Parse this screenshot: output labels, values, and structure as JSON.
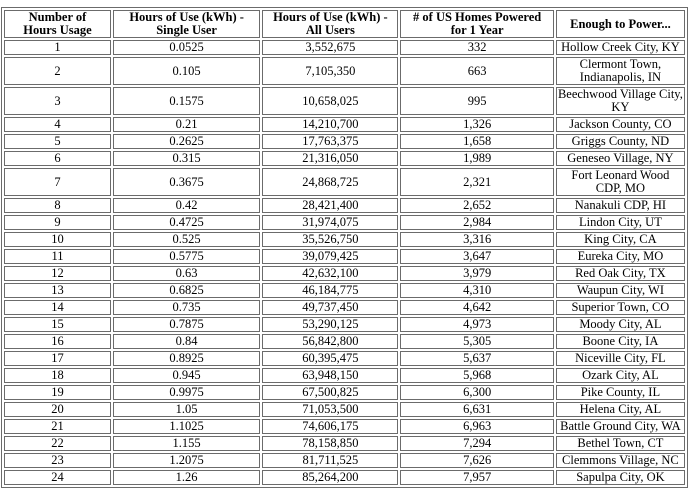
{
  "style": {
    "border_color": "#6b6b6b",
    "text_color": "#000000",
    "background_color": "#ffffff"
  },
  "chart_data": {
    "type": "table",
    "columns": [
      "Number of\nHours Usage",
      "Hours of Use (kWh) -\nSingle User",
      "Hours of Use (kWh) -\nAll Users",
      "# of US Homes Powered\nfor 1 Year",
      "Enough to Power..."
    ],
    "rows": [
      [
        "1",
        "0.0525",
        "3,552,675",
        "332",
        "Hollow Creek City, KY"
      ],
      [
        "2",
        "0.105",
        "7,105,350",
        "663",
        "Clermont Town, Indianapolis, IN"
      ],
      [
        "3",
        "0.1575",
        "10,658,025",
        "995",
        "Beechwood Village City, KY"
      ],
      [
        "4",
        "0.21",
        "14,210,700",
        "1,326",
        "Jackson County, CO"
      ],
      [
        "5",
        "0.2625",
        "17,763,375",
        "1,658",
        "Griggs County, ND"
      ],
      [
        "6",
        "0.315",
        "21,316,050",
        "1,989",
        "Geneseo Village, NY"
      ],
      [
        "7",
        "0.3675",
        "24,868,725",
        "2,321",
        "Fort Leonard Wood CDP, MO"
      ],
      [
        "8",
        "0.42",
        "28,421,400",
        "2,652",
        "Nanakuli CDP, HI"
      ],
      [
        "9",
        "0.4725",
        "31,974,075",
        "2,984",
        "Lindon City, UT"
      ],
      [
        "10",
        "0.525",
        "35,526,750",
        "3,316",
        "King City, CA"
      ],
      [
        "11",
        "0.5775",
        "39,079,425",
        "3,647",
        "Eureka City, MO"
      ],
      [
        "12",
        "0.63",
        "42,632,100",
        "3,979",
        "Red Oak City, TX"
      ],
      [
        "13",
        "0.6825",
        "46,184,775",
        "4,310",
        "Waupun City, WI"
      ],
      [
        "14",
        "0.735",
        "49,737,450",
        "4,642",
        "Superior Town, CO"
      ],
      [
        "15",
        "0.7875",
        "53,290,125",
        "4,973",
        "Moody City, AL"
      ],
      [
        "16",
        "0.84",
        "56,842,800",
        "5,305",
        "Boone City, IA"
      ],
      [
        "17",
        "0.8925",
        "60,395,475",
        "5,637",
        "Niceville City, FL"
      ],
      [
        "18",
        "0.945",
        "63,948,150",
        "5,968",
        "Ozark City, AL"
      ],
      [
        "19",
        "0.9975",
        "67,500,825",
        "6,300",
        "Pike County, IL"
      ],
      [
        "20",
        "1.05",
        "71,053,500",
        "6,631",
        "Helena City, AL"
      ],
      [
        "21",
        "1.1025",
        "74,606,175",
        "6,963",
        "Battle Ground City, WA"
      ],
      [
        "22",
        "1.155",
        "78,158,850",
        "7,294",
        "Bethel Town, CT"
      ],
      [
        "23",
        "1.2075",
        "81,711,525",
        "7,626",
        "Clemmons Village, NC"
      ],
      [
        "24",
        "1.26",
        "85,264,200",
        "7,957",
        "Sapulpa City, OK"
      ]
    ]
  }
}
